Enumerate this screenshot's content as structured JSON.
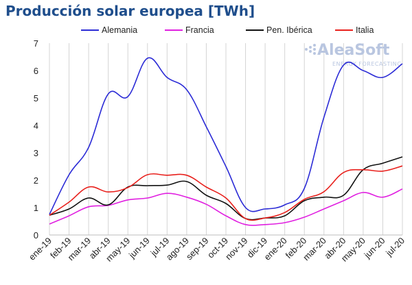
{
  "chart_data": {
    "type": "line",
    "title": "Producción solar europea [TWh]",
    "xlabel": "",
    "ylabel": "",
    "ylim": [
      0,
      7
    ],
    "yticks": [
      0,
      1,
      2,
      3,
      4,
      5,
      6,
      7
    ],
    "grid": "vertical",
    "legend_placement": "top",
    "categories": [
      "ene-19",
      "feb-19",
      "mar-19",
      "abr-19",
      "may-19",
      "jun-19",
      "jul-19",
      "ago-19",
      "sep-19",
      "oct-19",
      "nov-19",
      "dic-19",
      "ene-20",
      "feb-20",
      "mar-20",
      "abr-20",
      "may-20",
      "jun-20",
      "jul-20"
    ],
    "series": [
      {
        "name": "Alemania",
        "color": "#2b2bd6",
        "values": [
          0.75,
          2.2,
          3.2,
          5.15,
          5.05,
          6.45,
          5.75,
          5.3,
          3.95,
          2.5,
          1.0,
          0.95,
          1.1,
          1.7,
          4.3,
          6.2,
          6.0,
          5.75,
          6.25
        ]
      },
      {
        "name": "Francia",
        "color": "#e01fe0",
        "values": [
          0.4,
          0.7,
          1.03,
          1.08,
          1.28,
          1.35,
          1.52,
          1.38,
          1.12,
          0.7,
          0.38,
          0.38,
          0.45,
          0.65,
          0.95,
          1.25,
          1.55,
          1.38,
          1.68
        ]
      },
      {
        "name": "Pen. Ibérica",
        "color": "#111111",
        "values": [
          0.72,
          0.95,
          1.35,
          1.1,
          1.75,
          1.8,
          1.82,
          1.95,
          1.45,
          1.15,
          0.6,
          0.62,
          0.7,
          1.25,
          1.38,
          1.45,
          2.38,
          2.62,
          2.85
        ]
      },
      {
        "name": "Italia",
        "color": "#e8201c",
        "values": [
          0.72,
          1.2,
          1.75,
          1.57,
          1.73,
          2.2,
          2.18,
          2.18,
          1.75,
          1.35,
          0.6,
          0.62,
          0.82,
          1.3,
          1.58,
          2.28,
          2.38,
          2.33,
          2.52
        ]
      }
    ]
  },
  "watermark": {
    "name": "AleaSoft",
    "tagline": "ENERGY FORECASTING"
  }
}
